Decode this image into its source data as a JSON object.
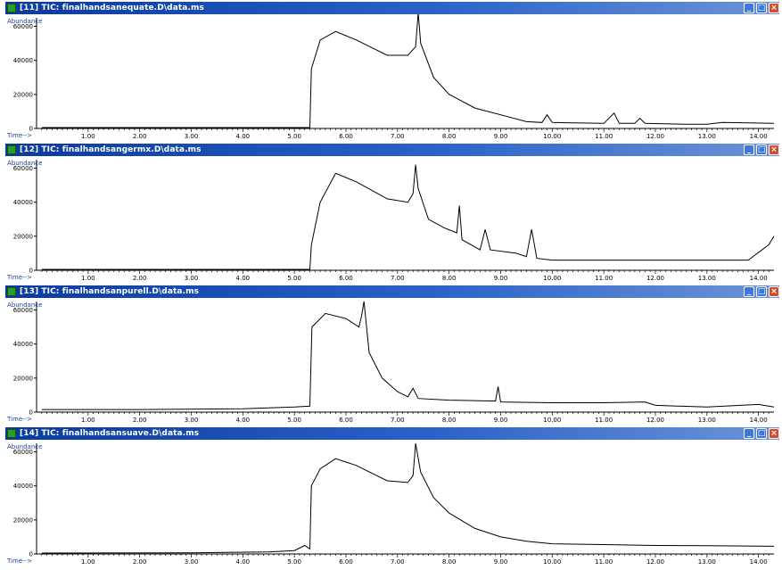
{
  "windows": [
    {
      "title": "[11] TIC: finalhandsanequate.D\\data.ms",
      "ylabel": "Abundance",
      "xlabel": "Time-->",
      "yticks": [
        "0",
        "20000",
        "40000",
        "60000"
      ],
      "xticks": [
        "1.00",
        "2.00",
        "3.00",
        "4.00",
        "5.00",
        "6.00",
        "7.00",
        "8.00",
        "9.00",
        "10.00",
        "11.00",
        "12.00",
        "13.00",
        "14.00"
      ]
    },
    {
      "title": "[12] TIC: finalhandsangermx.D\\data.ms",
      "ylabel": "Abundance",
      "xlabel": "Time-->",
      "yticks": [
        "0",
        "20000",
        "40000",
        "60000"
      ],
      "xticks": [
        "1.00",
        "2.00",
        "3.00",
        "4.00",
        "5.00",
        "6.00",
        "7.00",
        "8.00",
        "9.00",
        "10.00",
        "11.00",
        "12.00",
        "13.00",
        "14.00"
      ]
    },
    {
      "title": "[13] TIC: finalhandsanpurell.D\\data.ms",
      "ylabel": "Abundance",
      "xlabel": "Time-->",
      "yticks": [
        "0",
        "20000",
        "40000",
        "60000"
      ],
      "xticks": [
        "1.00",
        "2.00",
        "3.00",
        "4.00",
        "5.00",
        "6.00",
        "7.00",
        "8.00",
        "9.00",
        "10.00",
        "11.00",
        "12.00",
        "13.00",
        "14.00"
      ]
    },
    {
      "title": "[14] TIC: finalhandsansuave.D\\data.ms",
      "ylabel": "Abundance",
      "xlabel": "Time-->",
      "yticks": [
        "0",
        "20000",
        "40000",
        "60000"
      ],
      "xticks": [
        "1.00",
        "2.00",
        "3.00",
        "4.00",
        "5.00",
        "6.00",
        "7.00",
        "8.00",
        "9.00",
        "10.00",
        "11.00",
        "12.00",
        "13.00",
        "14.00"
      ]
    }
  ],
  "window_buttons": {
    "minimize": "_",
    "maximize": "□",
    "close": "×"
  },
  "chart_data": [
    {
      "type": "line",
      "x_range": [
        0,
        14.3
      ],
      "y_range": [
        0,
        65000
      ],
      "points": [
        [
          0.1,
          500
        ],
        [
          5.3,
          500
        ],
        [
          5.33,
          35000
        ],
        [
          5.5,
          52000
        ],
        [
          5.8,
          57000
        ],
        [
          6.2,
          52000
        ],
        [
          6.8,
          43000
        ],
        [
          7.2,
          43000
        ],
        [
          7.35,
          48000
        ],
        [
          7.4,
          68000
        ],
        [
          7.45,
          50000
        ],
        [
          7.7,
          30000
        ],
        [
          8.0,
          20000
        ],
        [
          8.5,
          12000
        ],
        [
          9.0,
          8000
        ],
        [
          9.5,
          4000
        ],
        [
          9.8,
          3500
        ],
        [
          9.9,
          8000
        ],
        [
          10.0,
          3500
        ],
        [
          11.0,
          3000
        ],
        [
          11.2,
          9000
        ],
        [
          11.3,
          3000
        ],
        [
          11.6,
          3000
        ],
        [
          11.7,
          6000
        ],
        [
          11.8,
          3000
        ],
        [
          12.5,
          2500
        ],
        [
          13.0,
          2500
        ],
        [
          13.3,
          3500
        ],
        [
          14.3,
          3000
        ]
      ]
    },
    {
      "type": "line",
      "x_range": [
        0,
        14.3
      ],
      "y_range": [
        0,
        65000
      ],
      "points": [
        [
          0.1,
          500
        ],
        [
          5.3,
          500
        ],
        [
          5.33,
          15000
        ],
        [
          5.5,
          40000
        ],
        [
          5.8,
          57000
        ],
        [
          6.2,
          52000
        ],
        [
          6.8,
          42000
        ],
        [
          7.2,
          40000
        ],
        [
          7.3,
          45000
        ],
        [
          7.35,
          62000
        ],
        [
          7.4,
          48000
        ],
        [
          7.6,
          30000
        ],
        [
          7.9,
          25000
        ],
        [
          8.15,
          22000
        ],
        [
          8.2,
          38000
        ],
        [
          8.25,
          18000
        ],
        [
          8.6,
          12000
        ],
        [
          8.7,
          24000
        ],
        [
          8.8,
          12000
        ],
        [
          9.3,
          10000
        ],
        [
          9.5,
          8000
        ],
        [
          9.6,
          24000
        ],
        [
          9.7,
          7000
        ],
        [
          10.0,
          6000
        ],
        [
          12.0,
          6000
        ],
        [
          13.8,
          6000
        ],
        [
          14.2,
          15000
        ],
        [
          14.3,
          20000
        ]
      ]
    },
    {
      "type": "line",
      "x_range": [
        0,
        14.3
      ],
      "y_range": [
        0,
        65000
      ],
      "points": [
        [
          0.1,
          1500
        ],
        [
          2.0,
          1500
        ],
        [
          4.0,
          2000
        ],
        [
          5.0,
          3000
        ],
        [
          5.3,
          3500
        ],
        [
          5.34,
          50000
        ],
        [
          5.6,
          58000
        ],
        [
          6.0,
          55000
        ],
        [
          6.25,
          50000
        ],
        [
          6.3,
          56000
        ],
        [
          6.35,
          65000
        ],
        [
          6.45,
          35000
        ],
        [
          6.7,
          20000
        ],
        [
          7.0,
          12000
        ],
        [
          7.2,
          9000
        ],
        [
          7.3,
          14000
        ],
        [
          7.4,
          8000
        ],
        [
          8.0,
          7000
        ],
        [
          8.9,
          6500
        ],
        [
          8.95,
          15000
        ],
        [
          9.0,
          6000
        ],
        [
          10.0,
          5500
        ],
        [
          11.0,
          5500
        ],
        [
          11.8,
          6000
        ],
        [
          12.0,
          4000
        ],
        [
          13.0,
          3000
        ],
        [
          14.0,
          4500
        ],
        [
          14.3,
          3000
        ]
      ]
    },
    {
      "type": "line",
      "x_range": [
        0,
        14.3
      ],
      "y_range": [
        0,
        65000
      ],
      "points": [
        [
          0.1,
          500
        ],
        [
          3.0,
          700
        ],
        [
          4.5,
          1200
        ],
        [
          5.0,
          2000
        ],
        [
          5.2,
          5000
        ],
        [
          5.3,
          3000
        ],
        [
          5.33,
          40000
        ],
        [
          5.5,
          50000
        ],
        [
          5.8,
          56000
        ],
        [
          6.2,
          52000
        ],
        [
          6.8,
          43000
        ],
        [
          7.2,
          42000
        ],
        [
          7.3,
          46000
        ],
        [
          7.35,
          65000
        ],
        [
          7.45,
          48000
        ],
        [
          7.7,
          33000
        ],
        [
          8.0,
          24000
        ],
        [
          8.5,
          15000
        ],
        [
          9.0,
          10000
        ],
        [
          9.5,
          7500
        ],
        [
          10.0,
          6000
        ],
        [
          11.0,
          5500
        ],
        [
          12.0,
          5000
        ],
        [
          13.0,
          4800
        ],
        [
          14.3,
          4500
        ]
      ]
    }
  ]
}
